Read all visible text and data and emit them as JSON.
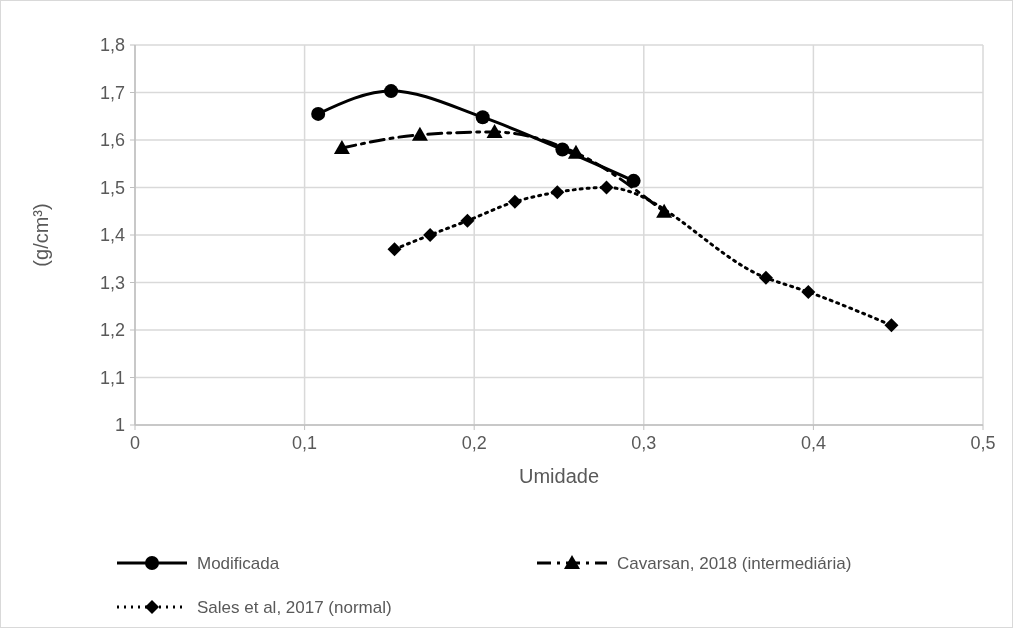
{
  "chart_data": {
    "type": "line",
    "xlabel": "Umidade",
    "ylabel": "(g/cm³)",
    "xlim": [
      0,
      0.5
    ],
    "xticks": [
      {
        "value": 0,
        "label": "0"
      },
      {
        "value": 0.1,
        "label": "0,1"
      },
      {
        "value": 0.2,
        "label": "0,2"
      },
      {
        "value": 0.3,
        "label": "0,3"
      },
      {
        "value": 0.4,
        "label": "0,4"
      },
      {
        "value": 0.5,
        "label": "0,5"
      }
    ],
    "ylim": [
      1,
      1.8
    ],
    "yticks": [
      {
        "value": 1,
        "label": "1"
      },
      {
        "value": 1.1,
        "label": "1,1"
      },
      {
        "value": 1.2,
        "label": "1,2"
      },
      {
        "value": 1.3,
        "label": "1,3"
      },
      {
        "value": 1.4,
        "label": "1,4"
      },
      {
        "value": 1.5,
        "label": "1,5"
      },
      {
        "value": 1.6,
        "label": "1,6"
      },
      {
        "value": 1.7,
        "label": "1,7"
      },
      {
        "value": 1.8,
        "label": "1,8"
      }
    ],
    "grid": true,
    "legend": "bottom",
    "series": [
      {
        "name": "Modificada",
        "color": "#000000",
        "marker": "circle",
        "line_style": "solid",
        "x": [
          0.108,
          0.151,
          0.205,
          0.252,
          0.294
        ],
        "values": [
          1.655,
          1.703,
          1.648,
          1.58,
          1.514
        ]
      },
      {
        "name": "Cavarsan, 2018 (intermediária)",
        "color": "#000000",
        "marker": "triangle",
        "line_style": "dashed",
        "x": [
          0.122,
          0.168,
          0.212,
          0.26,
          0.312
        ],
        "values": [
          1.583,
          1.611,
          1.617,
          1.573,
          1.449
        ]
      },
      {
        "name": "Sales et al, 2017 (normal)",
        "color": "#000000",
        "marker": "diamond",
        "line_style": "dotted",
        "x": [
          0.153,
          0.174,
          0.196,
          0.224,
          0.249,
          0.278,
          0.372,
          0.397,
          0.446
        ],
        "values": [
          1.37,
          1.4,
          1.43,
          1.47,
          1.49,
          1.5,
          1.31,
          1.28,
          1.21
        ]
      }
    ]
  }
}
